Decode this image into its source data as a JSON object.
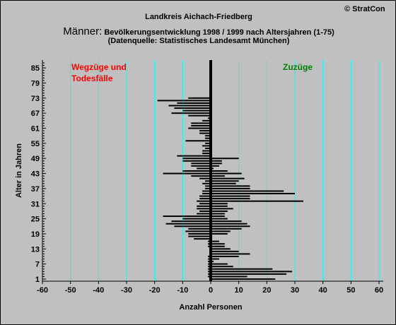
{
  "header": {
    "copyright": "© StratCon",
    "title": "Landkreis Aichach-Friedberg",
    "title_big": "Männer:",
    "title_rest": " Bevölkerungsentwicklung 1998 / 1999  nach Altersjahren (1-75)",
    "subtitle": "(Datenquelle: Statistisches Landesamt München)"
  },
  "colors": {
    "background": "#c0c0c0",
    "grid": "#00ffff",
    "bars": "#000000",
    "left_annotation": "#ff0000",
    "right_annotation": "#008000"
  },
  "chart_data": {
    "type": "bar",
    "orientation": "horizontal",
    "xlabel": "Anzahl Personen",
    "ylabel": "Alter in Jahren",
    "xlim": [
      -60,
      60
    ],
    "ylim": [
      1,
      87
    ],
    "x_ticks": [
      -60,
      -50,
      -40,
      -30,
      -20,
      -10,
      0,
      10,
      20,
      30,
      40,
      50,
      60
    ],
    "y_ticks": [
      1,
      7,
      13,
      19,
      25,
      31,
      37,
      43,
      49,
      55,
      61,
      67,
      73,
      79,
      85
    ],
    "annotations": [
      {
        "lines": [
          "Wegzüge und",
          "Todesfälle"
        ],
        "color": "#ff0000"
      },
      {
        "lines": [
          "Zuzüge"
        ],
        "color": "#008000"
      }
    ],
    "ages": [
      1,
      2,
      3,
      4,
      5,
      6,
      7,
      8,
      9,
      10,
      11,
      12,
      13,
      14,
      15,
      16,
      17,
      18,
      19,
      20,
      21,
      22,
      23,
      24,
      25,
      26,
      27,
      28,
      29,
      30,
      31,
      32,
      33,
      34,
      35,
      36,
      37,
      38,
      39,
      40,
      41,
      42,
      43,
      44,
      45,
      46,
      47,
      48,
      49,
      50,
      51,
      52,
      53,
      54,
      55,
      56,
      57,
      58,
      59,
      60,
      61,
      62,
      63,
      64,
      65,
      66,
      67,
      68,
      69,
      70,
      71,
      72,
      73,
      74,
      75
    ],
    "series": [
      {
        "name": "Wegzüge und Todesfälle",
        "values": [
          0,
          -1,
          -1,
          -1,
          -1,
          -1,
          -1,
          -1,
          -1,
          -1,
          0,
          0,
          0,
          -1,
          -1,
          -1,
          -6,
          -8,
          -8,
          -9,
          -8,
          -13,
          -16,
          -14,
          -10,
          -17,
          -5,
          -4,
          -5,
          -5,
          -4,
          -5,
          -4,
          -4,
          -3,
          -3,
          -2,
          -2,
          -3,
          -2,
          -4,
          -7,
          -17,
          -10,
          -5,
          -7,
          -7,
          -10,
          -10,
          -12,
          -3,
          -3,
          -2,
          -3,
          -2,
          -9,
          -2,
          -2,
          -4,
          -4,
          -8,
          -7,
          -7,
          -3,
          -1,
          -8,
          -14,
          -10,
          -13,
          -15,
          -12,
          -19,
          -8,
          0,
          0
        ]
      },
      {
        "name": "Zuzüge",
        "values": [
          23,
          13,
          27,
          29,
          22,
          8,
          6,
          1,
          3,
          10,
          14,
          10,
          7,
          5,
          5,
          3,
          0,
          0,
          6,
          7,
          11,
          14,
          13,
          11,
          6,
          5,
          5,
          6,
          8,
          6,
          6,
          33,
          14,
          14,
          30,
          26,
          14,
          14,
          9,
          10,
          12,
          5,
          11,
          6,
          1,
          3,
          4,
          4,
          10,
          0,
          0,
          0,
          0,
          0,
          0,
          0,
          0,
          0,
          0,
          0,
          0,
          0,
          0,
          0,
          0,
          0,
          0,
          0,
          0,
          0,
          0,
          0,
          0,
          0,
          0
        ]
      }
    ]
  }
}
